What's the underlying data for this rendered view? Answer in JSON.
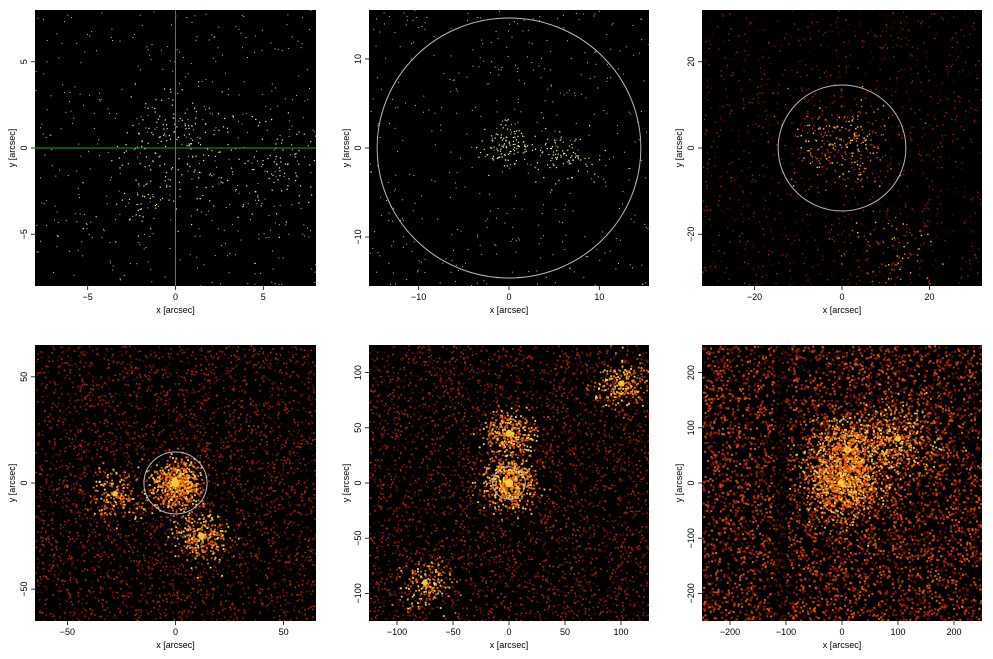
{
  "figure": {
    "colors": {
      "background": "#000000",
      "circle": "#b8b8b8",
      "crosshair": "#1fa01f",
      "sparse_point": "#e8f5a0",
      "heat_low": "#5a0a00",
      "heat_mid": "#e0500a",
      "heat_high": "#ffd23c"
    }
  },
  "chart_data": [
    {
      "type": "scatter",
      "xlabel": "x [arcsec]",
      "ylabel": "y [arcsec]",
      "xlim": [
        -8,
        8
      ],
      "ylim": [
        -8,
        8
      ],
      "xticks": [
        -5,
        0,
        5
      ],
      "yticks": [
        -5,
        0,
        5
      ],
      "xtick_labels": [
        "−5",
        "0",
        "5"
      ],
      "ytick_labels": [
        "−5",
        "0",
        "5"
      ],
      "crosshair": {
        "x": 0,
        "y": 0
      },
      "circle": null,
      "style": "sparse",
      "point_color": "#e8f5a0",
      "sources": [
        {
          "x": 0,
          "y": 0.7,
          "w": 1.2
        },
        {
          "x": 6,
          "y": -1,
          "w": 1.0
        },
        {
          "x": -1.5,
          "y": -2.5,
          "w": 0.6
        }
      ]
    },
    {
      "type": "scatter",
      "xlabel": "x [arcsec]",
      "ylabel": "y [arcsec]",
      "xlim": [
        -15.5,
        15.5
      ],
      "ylim": [
        -15.5,
        15.5
      ],
      "xticks": [
        -10,
        0,
        10
      ],
      "yticks": [
        -10,
        0,
        10
      ],
      "xtick_labels": [
        "−10",
        "0",
        "10"
      ],
      "ytick_labels": [
        "−10",
        "0",
        "10"
      ],
      "crosshair": null,
      "circle": {
        "x": 0,
        "y": 0,
        "r": 14.6
      },
      "style": "sparse",
      "point_color": "#e8f5a0",
      "sources": [
        {
          "x": 0,
          "y": 0.5,
          "w": 1.0
        },
        {
          "x": 6,
          "y": -1,
          "w": 0.8
        }
      ]
    },
    {
      "type": "heatmap",
      "xlabel": "x [arcsec]",
      "ylabel": "y [arcsec]",
      "xlim": [
        -32,
        32
      ],
      "ylim": [
        -32,
        32
      ],
      "xticks": [
        -20,
        0,
        20
      ],
      "yticks": [
        -20,
        0,
        20
      ],
      "xtick_labels": [
        "−20",
        "0",
        "20"
      ],
      "ytick_labels": [
        "−20",
        "0",
        "20"
      ],
      "crosshair": null,
      "circle": {
        "x": 0,
        "y": 0,
        "r": 14.6
      },
      "style": "sparse-heat",
      "sources": [
        {
          "x": 0,
          "y": 1,
          "w": 1.0
        },
        {
          "x": 10,
          "y": -24,
          "w": 0.3
        }
      ]
    },
    {
      "type": "heatmap",
      "xlabel": "x [arcsec]",
      "ylabel": "y [arcsec]",
      "xlim": [
        -65,
        65
      ],
      "ylim": [
        -65,
        65
      ],
      "xticks": [
        -50,
        0,
        50
      ],
      "yticks": [
        -50,
        0,
        50
      ],
      "xtick_labels": [
        "−50",
        "0",
        "50"
      ],
      "ytick_labels": [
        "−50",
        "0",
        "50"
      ],
      "crosshair": null,
      "circle": {
        "x": 0,
        "y": 0,
        "r": 14.6
      },
      "style": "heat",
      "sources": [
        {
          "x": 0,
          "y": 0,
          "w": 1.0
        },
        {
          "x": 12,
          "y": -25,
          "w": 0.5
        },
        {
          "x": -28,
          "y": -5,
          "w": 0.3
        }
      ]
    },
    {
      "type": "heatmap",
      "xlabel": "x [arcsec]",
      "ylabel": "y [arcsec]",
      "xlim": [
        -125,
        125
      ],
      "ylim": [
        -125,
        125
      ],
      "xticks": [
        -100,
        -50,
        0,
        50,
        100
      ],
      "yticks": [
        -100,
        -50,
        0,
        50,
        100
      ],
      "xtick_labels": [
        "−100",
        "−50",
        "0",
        "50",
        "100"
      ],
      "ytick_labels": [
        "−100",
        "−50",
        "0",
        "50",
        "100"
      ],
      "crosshair": null,
      "circle": {
        "x": 0,
        "y": 0,
        "r": 14.6
      },
      "style": "heat",
      "sources": [
        {
          "x": 0,
          "y": 0,
          "w": 1.0
        },
        {
          "x": 0,
          "y": 45,
          "w": 0.6
        },
        {
          "x": 100,
          "y": 90,
          "w": 0.4
        },
        {
          "x": -75,
          "y": -90,
          "w": 0.3
        }
      ]
    },
    {
      "type": "heatmap",
      "xlabel": "x [arcsec]",
      "ylabel": "y [arcsec]",
      "xlim": [
        -250,
        250
      ],
      "ylim": [
        -250,
        250
      ],
      "xticks": [
        -200,
        -100,
        0,
        100,
        200
      ],
      "yticks": [
        -200,
        -100,
        0,
        100,
        200
      ],
      "xtick_labels": [
        "−200",
        "−100",
        "0",
        "100",
        "200"
      ],
      "ytick_labels": [
        "−200",
        "−100",
        "0",
        "100",
        "200"
      ],
      "crosshair": null,
      "circle": null,
      "style": "dense-heat",
      "sources": [
        {
          "x": 0,
          "y": 0,
          "w": 1.0
        },
        {
          "x": 10,
          "y": 60,
          "w": 0.7
        },
        {
          "x": 100,
          "y": 80,
          "w": 0.4
        }
      ],
      "dark_column_x": -110
    }
  ]
}
